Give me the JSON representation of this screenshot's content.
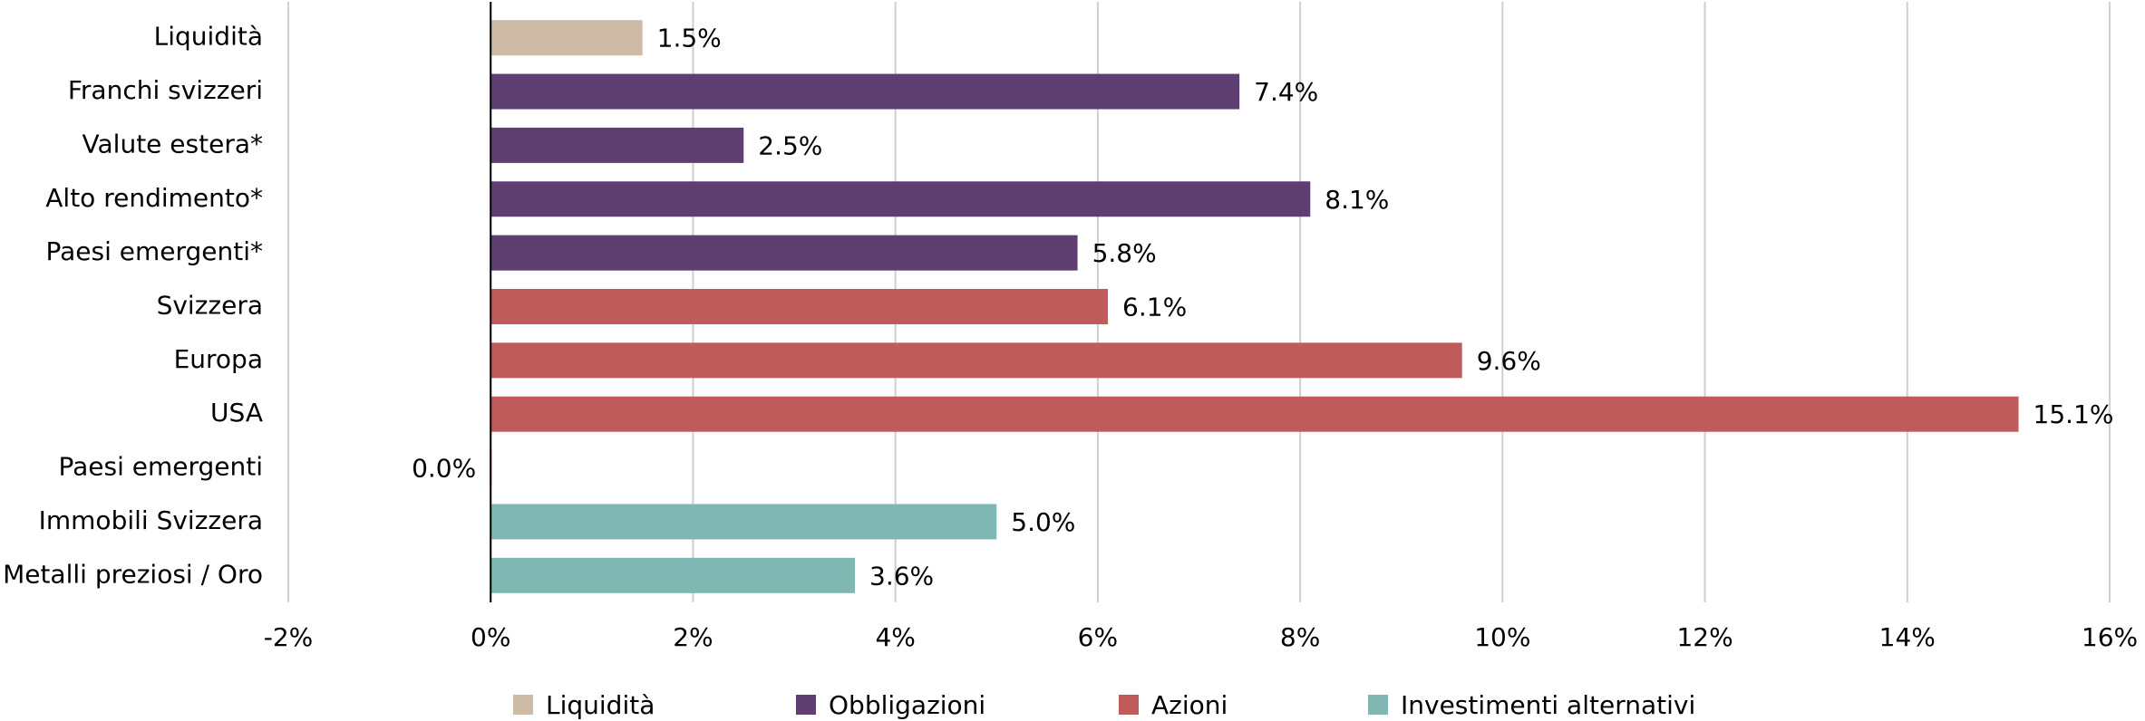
{
  "chart_data": {
    "type": "hbar",
    "categories": [
      "Liquidità",
      "Franchi svizzeri",
      "Valute estera*",
      "Alto rendimento*",
      "Paesi emergenti*",
      "Svizzera",
      "Europa",
      "USA",
      "Paesi emergenti",
      "Immobili Svizzera",
      "Metalli preziosi / Oro"
    ],
    "series": [
      {
        "name": "Liquidità",
        "color": "#cdbba8",
        "values": [
          1.5,
          null,
          null,
          null,
          null,
          null,
          null,
          null,
          null,
          null,
          null
        ],
        "value_labels": [
          "1.5%",
          null,
          null,
          null,
          null,
          null,
          null,
          null,
          null,
          null,
          null
        ]
      },
      {
        "name": "Obbligazioni",
        "color": "#5f3f72",
        "values": [
          null,
          7.4,
          2.5,
          8.1,
          5.8,
          null,
          null,
          null,
          null,
          null,
          null
        ],
        "value_labels": [
          null,
          "7.4%",
          "2.5%",
          "8.1%",
          "5.8%",
          null,
          null,
          null,
          null,
          null,
          null
        ]
      },
      {
        "name": "Azioni",
        "color": "#c05b5c",
        "values": [
          null,
          null,
          null,
          null,
          null,
          6.1,
          9.6,
          15.1,
          0.0,
          null,
          null
        ],
        "value_labels": [
          null,
          null,
          null,
          null,
          null,
          "6.1%",
          "9.6%",
          "15.1%",
          "0.0%",
          null,
          null
        ]
      },
      {
        "name": "Investimenti alternativi",
        "color": "#7fb8b3",
        "values": [
          null,
          null,
          null,
          null,
          null,
          null,
          null,
          null,
          null,
          5.0,
          3.6
        ],
        "value_labels": [
          null,
          null,
          null,
          null,
          null,
          null,
          null,
          null,
          null,
          "5.0%",
          "3.6%"
        ]
      }
    ],
    "xlim": [
      -2,
      16
    ],
    "xticks": [
      {
        "value": -2,
        "label": "-2%"
      },
      {
        "value": 0,
        "label": "0%"
      },
      {
        "value": 2,
        "label": "2%"
      },
      {
        "value": 4,
        "label": "4%"
      },
      {
        "value": 6,
        "label": "6%"
      },
      {
        "value": 8,
        "label": "8%"
      },
      {
        "value": 10,
        "label": "10%"
      },
      {
        "value": 12,
        "label": "12%"
      },
      {
        "value": 14,
        "label": "14%"
      },
      {
        "value": 16,
        "label": "16%"
      }
    ],
    "grid": true
  }
}
